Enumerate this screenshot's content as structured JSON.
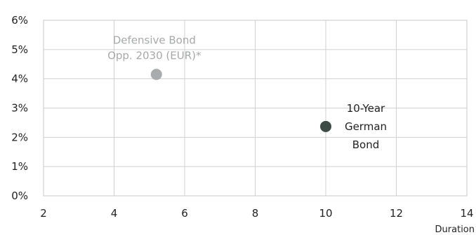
{
  "chart_data": {
    "type": "scatter",
    "title": "",
    "xlabel": "Duration",
    "ylabel": "",
    "xlim": [
      2,
      14
    ],
    "ylim": [
      0,
      6
    ],
    "x_ticks": [
      "2",
      "4",
      "6",
      "8",
      "10",
      "12",
      "14"
    ],
    "y_ticks": [
      "0%",
      "1%",
      "2%",
      "3%",
      "4%",
      "5%",
      "6%"
    ],
    "grid": true,
    "points": [
      {
        "label_lines": [
          "Defensive Bond",
          "Opp. 2030 (EUR)*"
        ],
        "x": 5.2,
        "y": 4.15,
        "color": "#a9abad",
        "label_color": "#a6a8aa"
      },
      {
        "label_lines": [
          "10-Year",
          "German",
          "Bond"
        ],
        "x": 10.0,
        "y": 2.37,
        "color": "#3b4a45",
        "label_color": "#222222"
      }
    ]
  }
}
